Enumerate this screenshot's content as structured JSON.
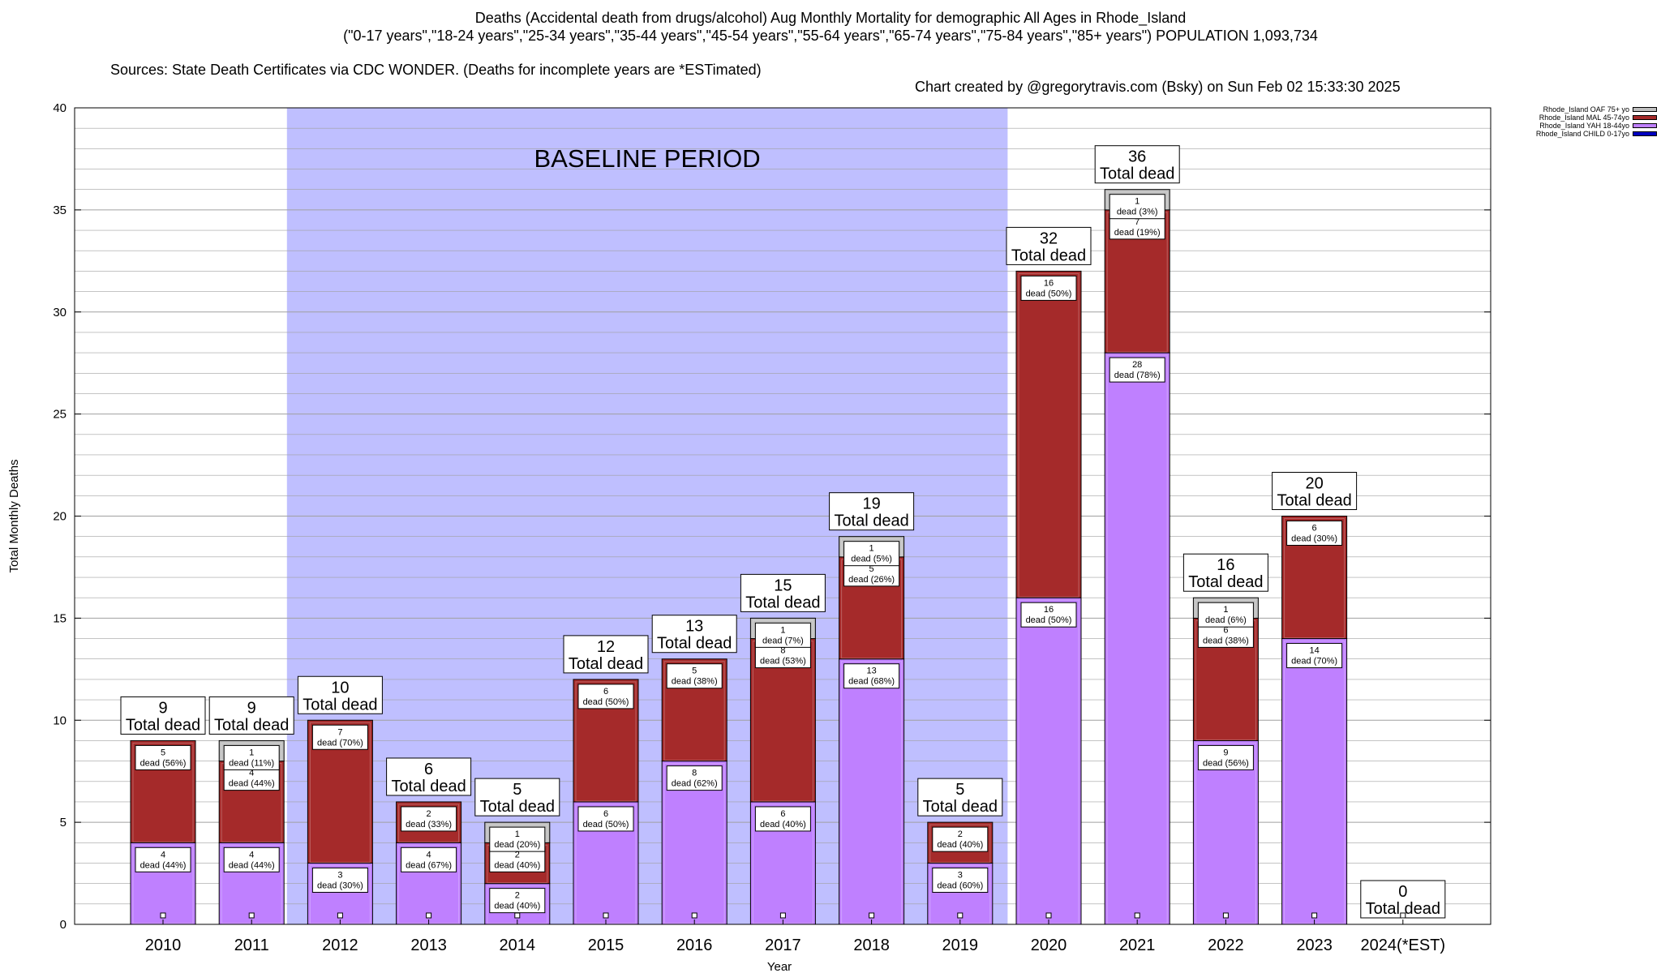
{
  "title": {
    "line1": "Deaths (Accidental death from drugs/alcohol) Aug Monthly Mortality for demographic All Ages in Rhode_Island",
    "line2": "(\"0-17 years\",\"18-24 years\",\"25-34 years\",\"35-44 years\",\"45-54 years\",\"55-64 years\",\"65-74 years\",\"75-84 years\",\"85+ years\") POPULATION 1,093,734",
    "sources": "Sources: State Death Certificates via CDC WONDER. (Deaths for incomplete years are *ESTimated)",
    "credit": "Chart created by @gregorytravis.com (Bsky) on Sun Feb 02 15:33:30 2025"
  },
  "chart_data": {
    "type": "bar",
    "stacked": true,
    "xlabel": "Year",
    "ylabel": "Total Monthly Deaths",
    "ylim": [
      0,
      40
    ],
    "y_ticks": [
      0,
      5,
      10,
      15,
      20,
      25,
      30,
      35,
      40
    ],
    "grid": true,
    "legend_position": "top-right, outside plot",
    "annotation": "BASELINE PERIOD",
    "baseline_period": [
      "2012",
      "2019"
    ],
    "categories": [
      "2010",
      "2011",
      "2012",
      "2013",
      "2014",
      "2015",
      "2016",
      "2017",
      "2018",
      "2019",
      "2020",
      "2021",
      "2022",
      "2023",
      "2024(*EST)"
    ],
    "series": [
      {
        "name": "Rhode_Island CHILD 0-17yo",
        "color": "#0000c0",
        "values": [
          0,
          0,
          0,
          0,
          0,
          0,
          0,
          0,
          0,
          0,
          0,
          0,
          0,
          0,
          0
        ],
        "labels": [
          "",
          "",
          "",
          "",
          "",
          "",
          "",
          "",
          "",
          "",
          "",
          "",
          "",
          "",
          ""
        ]
      },
      {
        "name": "Rhode_Island YAH 18-44yo",
        "color": "#bf80ff",
        "values": [
          4,
          4,
          3,
          4,
          2,
          6,
          8,
          6,
          13,
          3,
          16,
          28,
          9,
          14,
          0
        ],
        "labels": [
          "dead (44%)",
          "dead (44%)",
          "dead (30%)",
          "dead (67%)",
          "dead (40%)",
          "dead (50%)",
          "dead (62%)",
          "dead (40%)",
          "dead (68%)",
          "dead (60%)",
          "dead (50%)",
          "dead (78%)",
          "dead (56%)",
          "dead (70%)",
          ""
        ]
      },
      {
        "name": "Rhode_Island MAL 45-74yo",
        "color": "#a52a2a",
        "values": [
          5,
          4,
          7,
          2,
          2,
          6,
          5,
          8,
          5,
          2,
          16,
          7,
          6,
          6,
          0
        ],
        "labels": [
          "dead (56%)",
          "dead (44%)",
          "dead (70%)",
          "dead (33%)",
          "dead (40%)",
          "dead (50%)",
          "dead (38%)",
          "dead (53%)",
          "dead (26%)",
          "dead (40%)",
          "dead (50%)",
          "dead (19%)",
          "dead (38%)",
          "dead (30%)",
          ""
        ]
      },
      {
        "name": "Rhode_Island OAF 75+ yo",
        "color": "#c0c0c0",
        "values": [
          0,
          1,
          0,
          0,
          1,
          0,
          0,
          1,
          1,
          0,
          0,
          1,
          1,
          0,
          0
        ],
        "labels": [
          "",
          "dead (11%)",
          "",
          "",
          "dead (20%)",
          "",
          "",
          "dead (7%)",
          "dead (5%)",
          "",
          "",
          "dead (3%)",
          "dead (6%)",
          "",
          ""
        ]
      }
    ],
    "totals": [
      9,
      9,
      10,
      6,
      5,
      12,
      13,
      15,
      19,
      5,
      32,
      36,
      16,
      20,
      0
    ],
    "total_label": "Total dead"
  },
  "colors": {
    "baseline_band": "#bfbfff",
    "grid": "#a0a0a0"
  }
}
